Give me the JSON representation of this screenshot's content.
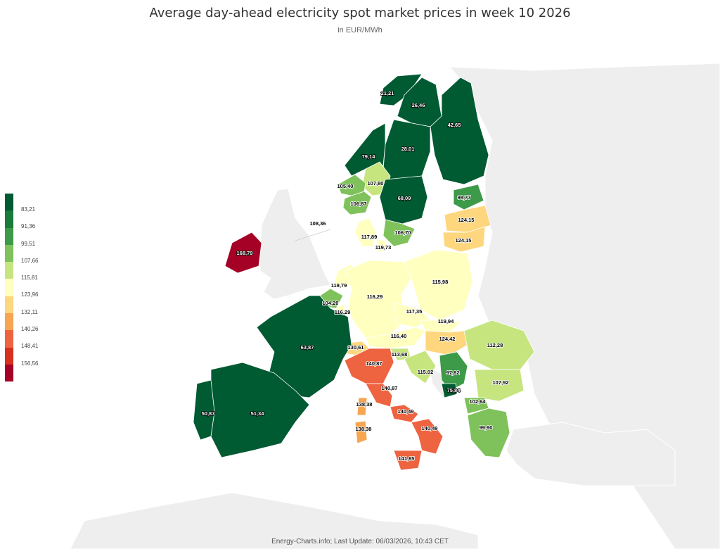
{
  "title": "Average day-ahead electricity spot market prices in week 10 2026",
  "subtitle": "in EUR/MWh",
  "footer": "Energy-Charts.info; Last Update: 06/03/2026, 10:43 CET",
  "legend": {
    "labels": [
      "83,21",
      "91,36",
      "99,51",
      "107,66",
      "115,81",
      "123,96",
      "132,11",
      "140,26",
      "148,41",
      "156,56"
    ],
    "colors": [
      "#005a32",
      "#1a7c3a",
      "#3c9a48",
      "#7fc25b",
      "#c6e57f",
      "#ffffbf",
      "#fdd67e",
      "#f8a552",
      "#ee6340",
      "#d7301f",
      "#a50026"
    ]
  },
  "colors": {
    "non_data_land": "#eeeeee",
    "border": "#ffffff"
  },
  "regions": [
    {
      "id": "no4",
      "label": "21,21",
      "value": 21.21,
      "color": "#005a32"
    },
    {
      "id": "se1",
      "label": "26,46",
      "value": 26.46,
      "color": "#005a32"
    },
    {
      "id": "fi",
      "label": "42,65",
      "value": 42.65,
      "color": "#005a32"
    },
    {
      "id": "se2",
      "label": "28,01",
      "value": 28.01,
      "color": "#005a32"
    },
    {
      "id": "no3",
      "label": "79,14",
      "value": 79.14,
      "color": "#005a32"
    },
    {
      "id": "no1",
      "label": "107,80",
      "value": 107.8,
      "color": "#c6e57f"
    },
    {
      "id": "no5",
      "label": "105,40",
      "value": 105.4,
      "color": "#7fc25b"
    },
    {
      "id": "no2",
      "label": "106,87",
      "value": 106.87,
      "color": "#7fc25b"
    },
    {
      "id": "se3",
      "label": "68,09",
      "value": 68.09,
      "color": "#005a32"
    },
    {
      "id": "ee",
      "label": "98,77",
      "value": 98.77,
      "color": "#3c9a48"
    },
    {
      "id": "lv",
      "label": "124,15",
      "value": 124.15,
      "color": "#fdd67e"
    },
    {
      "id": "lt",
      "label": "124,15",
      "value": 124.15,
      "color": "#fdd67e"
    },
    {
      "id": "se4",
      "label": "106,70",
      "value": 106.7,
      "color": "#7fc25b"
    },
    {
      "id": "dk1",
      "label": "117,89",
      "value": 117.89,
      "color": "#ffffbf"
    },
    {
      "id": "dk2",
      "label": "119,73",
      "value": 119.73,
      "color": "#ffffbf"
    },
    {
      "id": "uk",
      "label": "108,36",
      "value": 108.36,
      "color": "#eeeeee"
    },
    {
      "id": "ie",
      "label": "168,79",
      "value": 168.79,
      "color": "#a50026"
    },
    {
      "id": "nl",
      "label": "119,79",
      "value": 119.79,
      "color": "#ffffbf"
    },
    {
      "id": "be",
      "label": "104,20",
      "value": 104.2,
      "color": "#7fc25b"
    },
    {
      "id": "lu",
      "label": "116,29",
      "value": 116.29,
      "color": "#ffffbf"
    },
    {
      "id": "de",
      "label": "116,29",
      "value": 116.29,
      "color": "#ffffbf"
    },
    {
      "id": "pl",
      "label": "115,98",
      "value": 115.98,
      "color": "#ffffbf"
    },
    {
      "id": "cz",
      "label": "117,35",
      "value": 117.35,
      "color": "#ffffbf"
    },
    {
      "id": "sk",
      "label": "119,94",
      "value": 119.94,
      "color": "#ffffbf"
    },
    {
      "id": "at",
      "label": "116,40",
      "value": 116.4,
      "color": "#ffffbf"
    },
    {
      "id": "hu",
      "label": "124,42",
      "value": 124.42,
      "color": "#fdd67e"
    },
    {
      "id": "ch",
      "label": "130,61",
      "value": 130.61,
      "color": "#fdd67e"
    },
    {
      "id": "fr",
      "label": "63,87",
      "value": 63.87,
      "color": "#005a32"
    },
    {
      "id": "ro",
      "label": "112,28",
      "value": 112.28,
      "color": "#c6e57f"
    },
    {
      "id": "si",
      "label": "113,68",
      "value": 113.68,
      "color": "#c6e57f"
    },
    {
      "id": "hr",
      "label": "115,02",
      "value": 115.02,
      "color": "#c6e57f"
    },
    {
      "id": "rs",
      "label": "97,82",
      "value": 97.82,
      "color": "#3c9a48"
    },
    {
      "id": "bg",
      "label": "107,92",
      "value": 107.92,
      "color": "#c6e57f"
    },
    {
      "id": "me",
      "label": "75,84",
      "value": 75.84,
      "color": "#005a32"
    },
    {
      "id": "mk",
      "label": "102,64",
      "value": 102.64,
      "color": "#7fc25b"
    },
    {
      "id": "gr",
      "label": "99,90",
      "value": 99.9,
      "color": "#7fc25b"
    },
    {
      "id": "it_n",
      "label": "140,87",
      "value": 140.87,
      "color": "#ee6340"
    },
    {
      "id": "it_cn",
      "label": "140,87",
      "value": 140.87,
      "color": "#ee6340"
    },
    {
      "id": "it_cs",
      "label": "140,49",
      "value": 140.49,
      "color": "#ee6340"
    },
    {
      "id": "it_s",
      "label": "140,49",
      "value": 140.49,
      "color": "#ee6340"
    },
    {
      "id": "it_sic",
      "label": "141,85",
      "value": 141.85,
      "color": "#ee6340"
    },
    {
      "id": "it_sar_n",
      "label": "138,38",
      "value": 138.38,
      "color": "#f8a552"
    },
    {
      "id": "it_sar_s",
      "label": "138,38",
      "value": 138.38,
      "color": "#f8a552"
    },
    {
      "id": "es",
      "label": "51,34",
      "value": 51.34,
      "color": "#005a32"
    },
    {
      "id": "pt",
      "label": "50,87",
      "value": 50.87,
      "color": "#005a32"
    }
  ]
}
